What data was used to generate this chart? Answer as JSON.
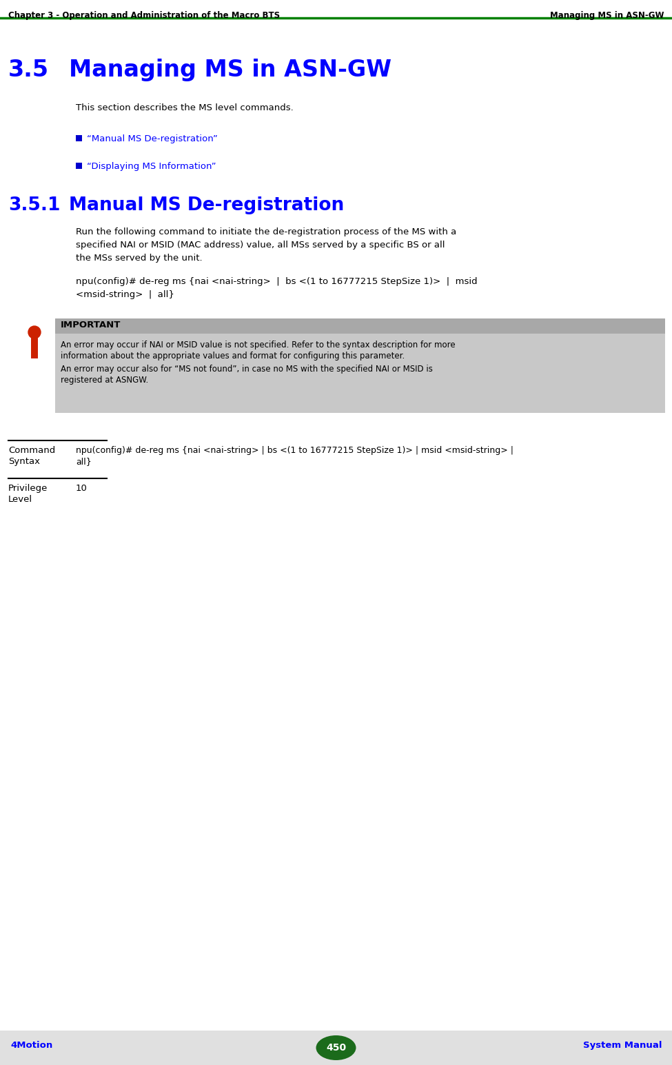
{
  "header_left": "Chapter 3 - Operation and Administration of the Macro BTS",
  "header_right": "Managing MS in ASN-GW",
  "header_line_color": "#008000",
  "section_number": "3.5",
  "section_title": "Managing MS in ASN-GW",
  "section_title_color": "#0000FF",
  "intro_text": "This section describes the MS level commands.",
  "bullet_items": [
    "“Manual MS De-registration”",
    "“Displaying MS Information”"
  ],
  "bullet_color": "#0000FF",
  "bullet_square_color": "#0000CD",
  "subsection_number": "3.5.1",
  "subsection_title": "Manual MS De-registration",
  "subsection_title_color": "#0000FF",
  "body_lines": [
    "Run the following command to initiate the de-registration process of the MS with a",
    "specified NAI or MSID (MAC address) value, all MSs served by a specific BS or all",
    "the MSs served by the unit."
  ],
  "cmd_line1": "npu(config)# de-reg ms {nai <nai-string>  |  bs <(1 to 16777215 StepSize 1)>  |  msid",
  "cmd_line2": "<msid-string>  |  all}",
  "important_label": "IMPORTANT",
  "important_bg": "#C8C8C8",
  "important_header_bg": "#A8A8A8",
  "important_text_1a": "An error may occur if NAI or MSID value is not specified. Refer to the syntax description for more",
  "important_text_1b": "information about the appropriate values and format for configuring this parameter.",
  "important_text_2a": "An error may occur also for “MS not found”, in case no MS with the specified NAI or MSID is",
  "important_text_2b": "registered at ASNGW.",
  "icon_color": "#CC2200",
  "table_col1_row1a": "Command",
  "table_col1_row1b": "Syntax",
  "table_col2_row1a": "npu(config)# de-reg ms {nai <nai-string> | bs <(1 to 16777215 StepSize 1)> | msid <msid-string> |",
  "table_col2_row1b": "all}",
  "table_col1_row2a": "Privilege",
  "table_col1_row2b": "Level",
  "table_col2_row2": "10",
  "footer_left": "4Motion",
  "footer_center": "450",
  "footer_right": "System Manual",
  "footer_color": "#0000FF",
  "footer_badge_color": "#1B6B1B",
  "footer_bg": "#E0E0E0",
  "bg_color": "#FFFFFF"
}
